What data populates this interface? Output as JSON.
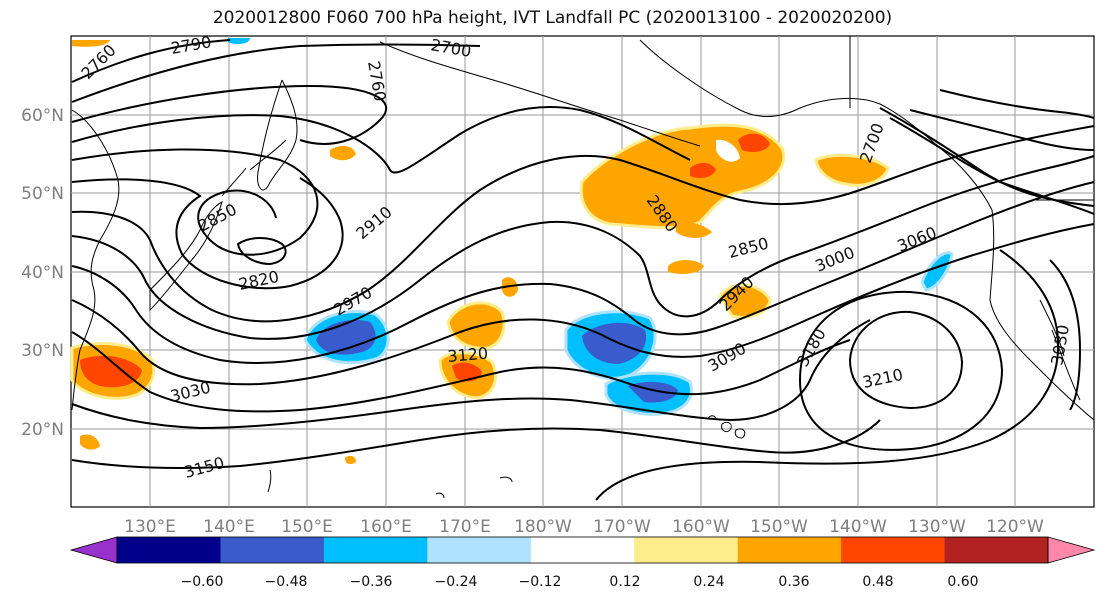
{
  "title": "2020012800 F060 700 hPa height, IVT Landfall PC (2020013100 - 2020020200)",
  "lat_labels": [
    "60°N",
    "50°N",
    "40°N",
    "30°N",
    "20°N"
  ],
  "lon_labels": [
    "130°E",
    "140°E",
    "150°E",
    "160°E",
    "170°E",
    "180°W",
    "170°W",
    "160°W",
    "150°W",
    "140°W",
    "130°W",
    "120°W"
  ],
  "contour_labels": [
    "2760",
    "2790",
    "2700",
    "2760",
    "2850",
    "2910",
    "2820",
    "2970",
    "3120",
    "3030",
    "3150",
    "2850",
    "3000",
    "3060",
    "2940",
    "3090",
    "3180",
    "3210",
    "2880",
    "2700",
    "3030"
  ],
  "colorbar": {
    "colors": [
      "#9932cc",
      "#00008b",
      "#3a5bcc",
      "#00bfff",
      "#b0e2ff",
      "#ffffff",
      "#ffec8b",
      "#ffa500",
      "#ff4500",
      "#b22222",
      "#ff88aa"
    ],
    "ticks": [
      "−0.60",
      "−0.48",
      "−0.36",
      "−0.24",
      "−0.12",
      "0.12",
      "0.24",
      "0.36",
      "0.48",
      "0.60"
    ]
  }
}
